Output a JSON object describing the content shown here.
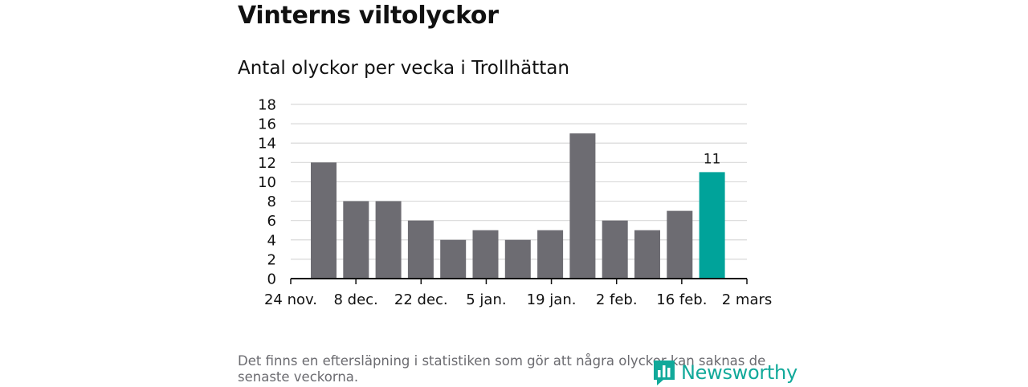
{
  "title": "Vinterns viltolyckor",
  "subtitle": "Antal olyckor per vecka i Trollhättan",
  "footnote": "Det finns en eftersläpning i statistiken som gör att några olyckor kan saknas de senaste veckorna.",
  "brand": "Newsworthy",
  "colors": {
    "bar": "#6d6c72",
    "highlight": "#00a39a",
    "grid": "#d9d9d9",
    "axis": "#111111",
    "brand": "#11a99a"
  },
  "chart_data": {
    "type": "bar",
    "title": "Vinterns viltolyckor",
    "subtitle": "Antal olyckor per vecka i Trollhättan",
    "xlabel": "",
    "ylabel": "",
    "ylim": [
      0,
      18
    ],
    "yticks": [
      0,
      2,
      4,
      6,
      8,
      10,
      12,
      14,
      16,
      18
    ],
    "grid": true,
    "values": [
      12,
      8,
      8,
      6,
      4,
      5,
      4,
      5,
      15,
      6,
      5,
      7,
      11
    ],
    "highlight_index": 12,
    "highlight_label": "11",
    "x_tick_labels": [
      "24 nov.",
      "8 dec.",
      "22 dec.",
      "5 jan.",
      "19 jan.",
      "2 feb.",
      "16 feb.",
      "2 mars"
    ]
  }
}
